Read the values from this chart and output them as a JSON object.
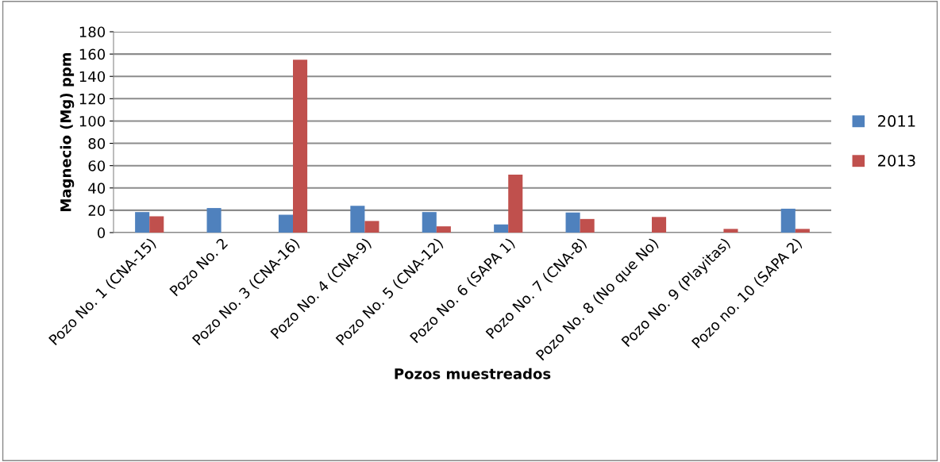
{
  "chart_data": {
    "type": "bar",
    "xlabel": "Pozos muestreados",
    "ylabel": "Magnecio (Mg) ppm",
    "categories": [
      "Pozo No. 1 (CNA-15)",
      "Pozo No. 2",
      "Pozo No. 3 (CNA-16)",
      "Pozo No. 4 (CNA-9)",
      "Pozo No. 5 (CNA-12)",
      "Pozo No. 6 (SAPA 1)",
      "Pozo No. 7 (CNA-8)",
      "Pozo No. 8 (No que No)",
      "Pozo No. 9 (Playitas)",
      "Pozo no. 10 (SAPA 2)"
    ],
    "series": [
      {
        "name": "2011",
        "color": "#4f81bd",
        "values": [
          18.4,
          22,
          16,
          24,
          18.4,
          7.3,
          18,
          null,
          null,
          21.4
        ]
      },
      {
        "name": "2013",
        "color": "#c0504d",
        "values": [
          14.6,
          null,
          155,
          10.4,
          5.6,
          52,
          12.2,
          14,
          3.3,
          3.3
        ]
      }
    ],
    "ylim": [
      0,
      180
    ],
    "yticks": [
      0,
      20,
      40,
      60,
      80,
      100,
      120,
      140,
      160,
      180
    ],
    "grid": "y",
    "legend": "right"
  }
}
